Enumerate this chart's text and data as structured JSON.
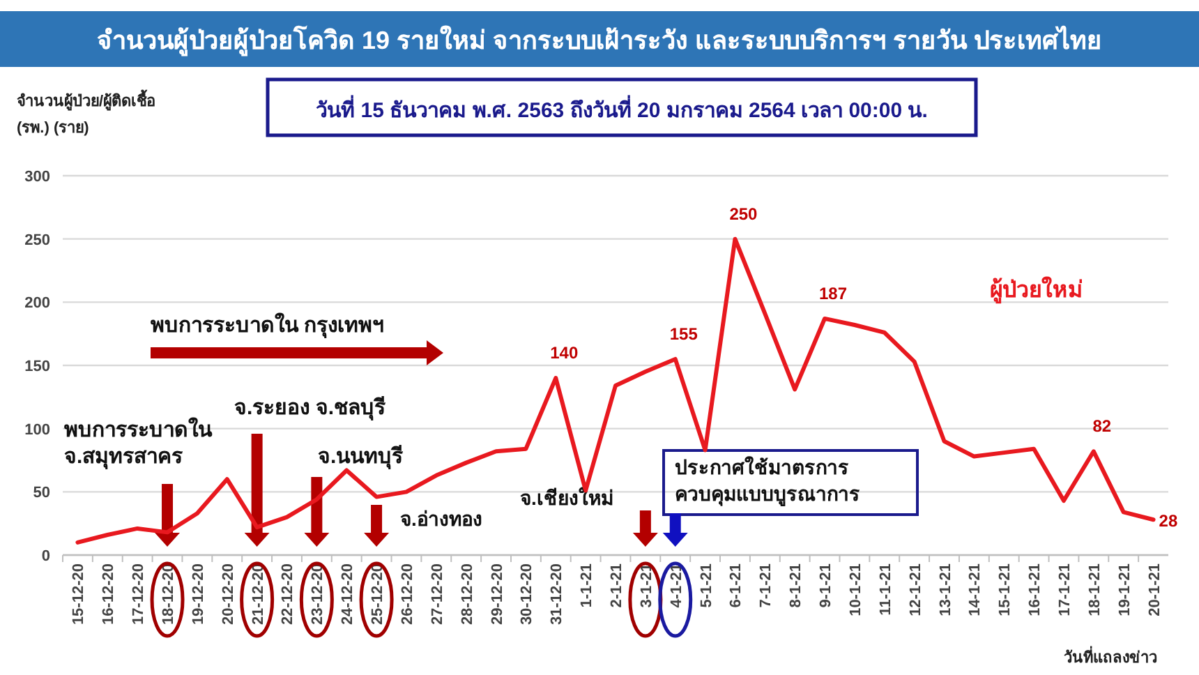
{
  "chart_data": {
    "type": "line",
    "title": "จำนวนผู้ป่วยผู้ป่วยโควิด 19 รายใหม่ จากระบบเฝ้าระวัง และระบบบริการฯ รายวัน ประเทศไทย",
    "subtitle": "วันที่ 15 ธันวาคม พ.ศ. 2563 ถึงวันที่ 20 มกราคม 2564 เวลา 00:00 น.",
    "ylabel": "จำนวนผู้ป่วย/ผู้ติดเชื้อ\n(รพ.) (ราย)",
    "xlabel": "วันที่แถลงข่าว",
    "categories": [
      "15-12-20",
      "16-12-20",
      "17-12-20",
      "18-12-20",
      "19-12-20",
      "20-12-20",
      "21-12-20",
      "22-12-20",
      "23-12-20",
      "24-12-20",
      "25-12-20",
      "26-12-20",
      "27-12-20",
      "28-12-20",
      "29-12-20",
      "30-12-20",
      "31-12-20",
      "1-1-21",
      "2-1-21",
      "3-1-21",
      "4-1-21",
      "5-1-21",
      "6-1-21",
      "7-1-21",
      "8-1-21",
      "9-1-21",
      "10-1-21",
      "11-1-21",
      "12-1-21",
      "13-1-21",
      "14-1-21",
      "15-1-21",
      "16-1-21",
      "17-1-21",
      "18-1-21",
      "19-1-21",
      "20-1-21"
    ],
    "series": [
      {
        "name": "ผู้ป่วยใหม่",
        "color": "#e8191f",
        "values": [
          10,
          16,
          21,
          18,
          33,
          60,
          22,
          30,
          44,
          67,
          46,
          50,
          63,
          73,
          82,
          84,
          140,
          51,
          134,
          145,
          155,
          83,
          250,
          191,
          131,
          187,
          182,
          176,
          153,
          90,
          78,
          81,
          84,
          43,
          82,
          34,
          28
        ],
        "value_labels": [
          null,
          null,
          null,
          null,
          null,
          null,
          null,
          null,
          null,
          null,
          null,
          null,
          null,
          null,
          null,
          null,
          "140",
          null,
          null,
          null,
          "155",
          null,
          "250",
          null,
          null,
          "187",
          null,
          null,
          null,
          null,
          null,
          null,
          null,
          null,
          "82",
          null,
          "28"
        ]
      }
    ],
    "annotations": [
      "พบการระบาดใน กรุงเทพฯ",
      "พบการระบาดใน\nจ.สมุทรสาคร",
      "จ.ระยอง จ.ชลบุรี",
      "จ.นนทบุรี",
      "จ.อ่างทอง",
      "จ.เชียงใหม่",
      "ประกาศใช้มาตรการ\nควบคุมแบบบูรณาการ"
    ],
    "ylim": [
      0,
      300
    ],
    "yticks": [
      0,
      50,
      100,
      150,
      200,
      250,
      300
    ],
    "grid": "y",
    "marker": "none",
    "line_style": "solid"
  }
}
